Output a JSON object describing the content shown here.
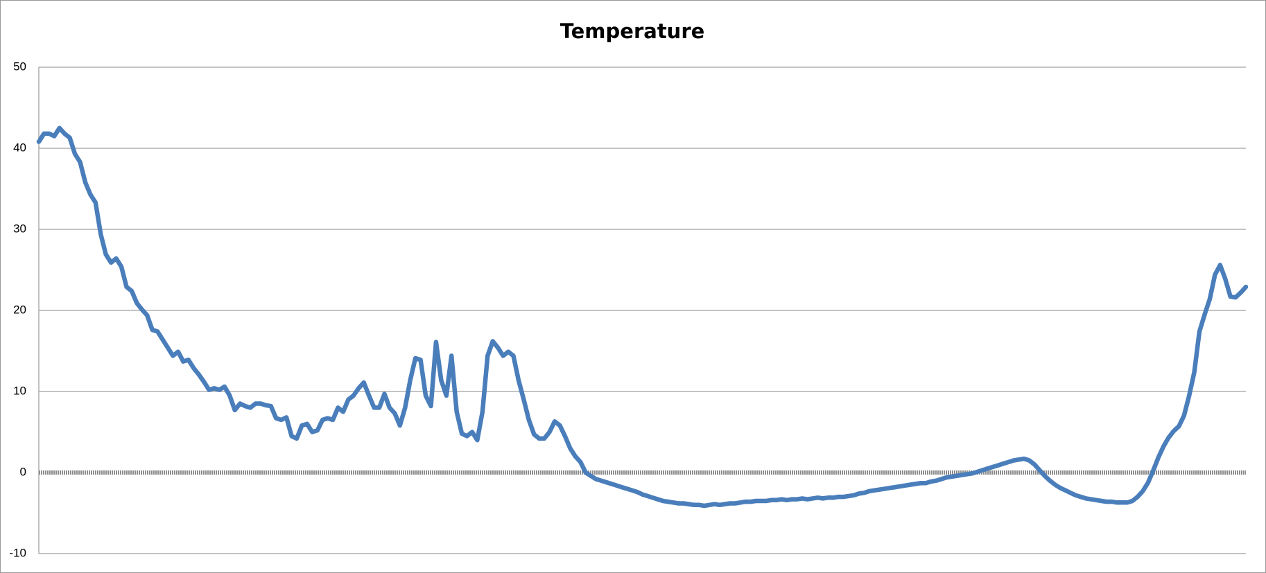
{
  "chart_data": {
    "type": "line",
    "title": "Temperature",
    "series": [
      {
        "name": "Temperature",
        "color": "#4a7ebb",
        "values": [
          40.8,
          41.8,
          41.8,
          41.5,
          42.5,
          41.8,
          41.3,
          39.3,
          38.3,
          35.8,
          34.3,
          33.3,
          29.4,
          26.9,
          25.9,
          26.4,
          25.4,
          22.9,
          22.4,
          20.9,
          20.1,
          19.4,
          17.6,
          17.4,
          16.4,
          15.4,
          14.4,
          14.9,
          13.7,
          13.9,
          12.9,
          12.1,
          11.2,
          10.2,
          10.4,
          10.2,
          10.6,
          9.5,
          7.7,
          8.5,
          8.2,
          8.0,
          8.5,
          8.5,
          8.3,
          8.2,
          6.7,
          6.5,
          6.8,
          4.5,
          4.2,
          5.8,
          6.0,
          5.0,
          5.2,
          6.5,
          6.7,
          6.5,
          8.0,
          7.5,
          9.0,
          9.5,
          10.4,
          11.1,
          9.5,
          8.0,
          8.0,
          9.7,
          8.0,
          7.3,
          5.8,
          8.0,
          11.4,
          14.1,
          13.9,
          9.5,
          8.2,
          16.1,
          11.4,
          9.5,
          14.4,
          7.5,
          4.8,
          4.5,
          5.0,
          4.0,
          7.5,
          14.4,
          16.2,
          15.4,
          14.4,
          14.9,
          14.4,
          11.4,
          9.0,
          6.5,
          4.7,
          4.2,
          4.2,
          5.0,
          6.3,
          5.8,
          4.5,
          3.0,
          2.0,
          1.3,
          0.0,
          -0.4,
          -0.8,
          -1.0,
          -1.2,
          -1.4,
          -1.6,
          -1.8,
          -2.0,
          -2.2,
          -2.4,
          -2.7,
          -2.9,
          -3.1,
          -3.3,
          -3.5,
          -3.6,
          -3.7,
          -3.8,
          -3.8,
          -3.9,
          -4.0,
          -4.0,
          -4.1,
          -4.0,
          -3.9,
          -4.0,
          -3.9,
          -3.8,
          -3.8,
          -3.7,
          -3.6,
          -3.6,
          -3.5,
          -3.5,
          -3.5,
          -3.4,
          -3.4,
          -3.3,
          -3.4,
          -3.3,
          -3.3,
          -3.2,
          -3.3,
          -3.2,
          -3.1,
          -3.2,
          -3.1,
          -3.1,
          -3.0,
          -3.0,
          -2.9,
          -2.8,
          -2.6,
          -2.5,
          -2.3,
          -2.2,
          -2.1,
          -2.0,
          -1.9,
          -1.8,
          -1.7,
          -1.6,
          -1.5,
          -1.4,
          -1.3,
          -1.3,
          -1.1,
          -1.0,
          -0.8,
          -0.6,
          -0.5,
          -0.4,
          -0.3,
          -0.2,
          -0.1,
          0.1,
          0.3,
          0.5,
          0.7,
          0.9,
          1.1,
          1.3,
          1.5,
          1.6,
          1.7,
          1.5,
          1.0,
          0.3,
          -0.4,
          -1.0,
          -1.5,
          -1.9,
          -2.2,
          -2.5,
          -2.8,
          -3.0,
          -3.2,
          -3.3,
          -3.4,
          -3.5,
          -3.6,
          -3.6,
          -3.7,
          -3.7,
          -3.7,
          -3.5,
          -3.0,
          -2.3,
          -1.3,
          0.2,
          1.8,
          3.2,
          4.3,
          5.1,
          5.7,
          7.0,
          9.5,
          12.4,
          17.4,
          19.5,
          21.4,
          24.4,
          25.6,
          23.9,
          21.7,
          21.6,
          22.2,
          22.9
        ]
      }
    ],
    "ylim": [
      -10,
      50
    ],
    "yticks": [
      -10,
      0,
      10,
      20,
      30,
      40,
      50
    ],
    "grid": true,
    "zero_line": true,
    "legend": false
  }
}
